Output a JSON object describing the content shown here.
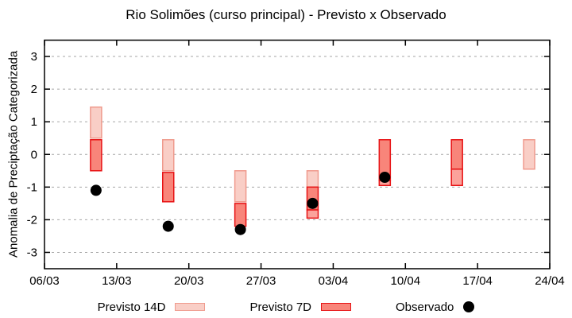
{
  "chart_data": {
    "type": "bar",
    "subtype": "categorized-forecast-ranges-with-observed-points",
    "title": "Rio Solimões (curso principal) - Previsto x Observado",
    "ylabel": "Anomalia de Preciptação Categorizada",
    "ylim": [
      -3.5,
      3.5
    ],
    "yticks": [
      -3,
      -2,
      -1,
      0,
      1,
      2,
      3
    ],
    "x_span_days": 49,
    "xticks": [
      {
        "label": "06/03",
        "day": 0
      },
      {
        "label": "13/03",
        "day": 7
      },
      {
        "label": "20/03",
        "day": 14
      },
      {
        "label": "27/03",
        "day": 21
      },
      {
        "label": "03/04",
        "day": 28
      },
      {
        "label": "10/04",
        "day": 35
      },
      {
        "label": "17/04",
        "day": 42
      },
      {
        "label": "24/04",
        "day": 49
      }
    ],
    "grid": true,
    "grid_color": "#a6a6a6",
    "frame_color": "#000000",
    "styles": {
      "previsto14d": {
        "fill": "#f9cec6",
        "stroke": "#ef9a8d"
      },
      "previsto7d": {
        "fill": "#f8857a",
        "stroke": "#e71214"
      },
      "previsto7d_light": {
        "fill": "#fba29b",
        "stroke": "#e71214"
      },
      "observado": {
        "fill": "#000000"
      }
    },
    "series": [
      {
        "date": "11/03",
        "day": 5,
        "segments": [
          {
            "style": "previsto14d",
            "lo": 0.5,
            "hi": 1.45
          },
          {
            "style": "previsto7d",
            "lo": -0.5,
            "hi": 0.45
          }
        ],
        "observado": -1.1
      },
      {
        "date": "18/03",
        "day": 12,
        "segments": [
          {
            "style": "previsto14d",
            "lo": -0.5,
            "hi": 0.45
          },
          {
            "style": "previsto7d",
            "lo": -1.45,
            "hi": -0.55
          }
        ],
        "observado": -2.2
      },
      {
        "date": "25/03",
        "day": 19,
        "segments": [
          {
            "style": "previsto14d",
            "lo": -1.45,
            "hi": -0.5
          },
          {
            "style": "previsto7d",
            "lo": -2.2,
            "hi": -1.5
          }
        ],
        "observado": -2.3
      },
      {
        "date": "01/04",
        "day": 26,
        "segments": [
          {
            "style": "previsto14d",
            "lo": -1.0,
            "hi": -0.5
          },
          {
            "style": "previsto7d",
            "lo": -1.7,
            "hi": -1.0
          },
          {
            "style": "previsto7d_light",
            "lo": -1.95,
            "hi": -1.7
          }
        ],
        "observado": -1.5
      },
      {
        "date": "08/04",
        "day": 33,
        "segments": [
          {
            "style": "previsto7d",
            "lo": -0.8,
            "hi": 0.45
          },
          {
            "style": "previsto7d_light",
            "lo": -0.95,
            "hi": -0.8
          }
        ],
        "observado": -0.7
      },
      {
        "date": "15/04",
        "day": 40,
        "segments": [
          {
            "style": "previsto7d",
            "lo": -0.45,
            "hi": 0.45
          },
          {
            "style": "previsto7d_light",
            "lo": -0.95,
            "hi": -0.45
          }
        ],
        "observado": null
      },
      {
        "date": "22/04",
        "day": 47,
        "segments": [
          {
            "style": "previsto14d",
            "lo": -0.45,
            "hi": 0.45
          }
        ],
        "observado": null
      }
    ],
    "legend": [
      {
        "label": "Previsto 14D",
        "swatch": "previsto14d",
        "marker": "box"
      },
      {
        "label": "Previsto 7D",
        "swatch": "previsto7d",
        "marker": "box"
      },
      {
        "label": "Observado",
        "swatch": "observado",
        "marker": "circle"
      }
    ]
  }
}
